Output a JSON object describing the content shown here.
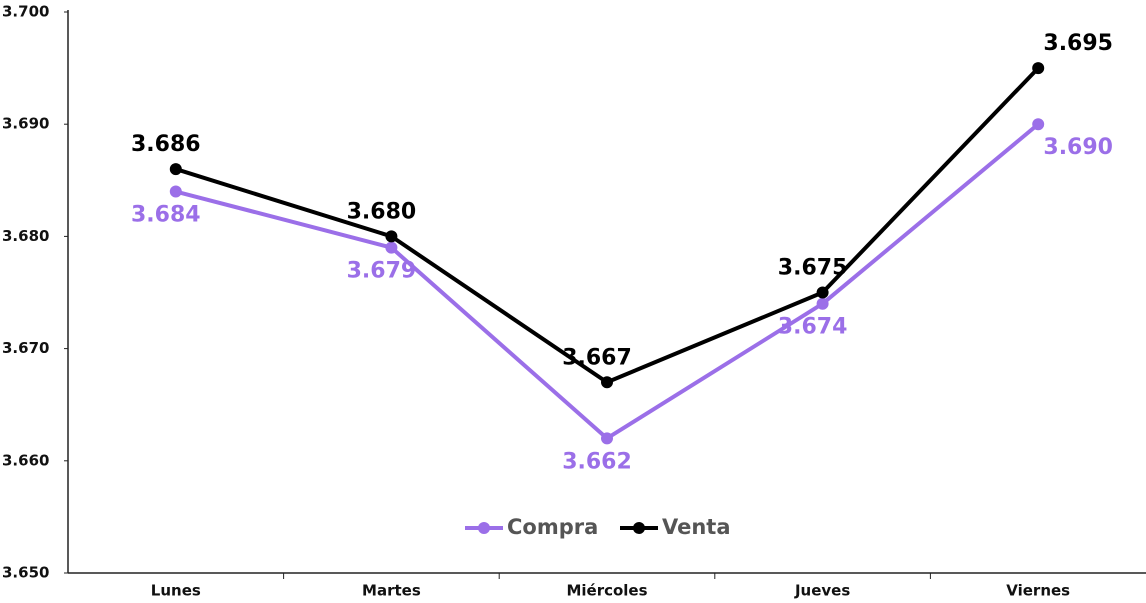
{
  "chart_data": {
    "type": "line",
    "categories": [
      "Lunes",
      "Martes",
      "Miércoles",
      "Jueves",
      "Viernes"
    ],
    "series": [
      {
        "name": "Compra",
        "color": "#9b6fe8",
        "values": [
          3684,
          3679,
          3662,
          3674,
          3690
        ],
        "value_labels": [
          "3.684",
          "3.679",
          "3.662",
          "3.674",
          "3.690"
        ]
      },
      {
        "name": "Venta",
        "color": "#000000",
        "values": [
          3686,
          3680,
          3667,
          3675,
          3695
        ],
        "value_labels": [
          "3.686",
          "3.680",
          "3.667",
          "3.675",
          "3.695"
        ]
      }
    ],
    "ylim": [
      3650,
      3700
    ],
    "yticks": [
      {
        "value": 3650,
        "label": "3.650"
      },
      {
        "value": 3660,
        "label": "3.660"
      },
      {
        "value": 3670,
        "label": "3.670"
      },
      {
        "value": 3680,
        "label": "3.680"
      },
      {
        "value": 3690,
        "label": "3.690"
      },
      {
        "value": 3700,
        "label": "3.700"
      }
    ],
    "grid": false,
    "legend": "bottom"
  }
}
